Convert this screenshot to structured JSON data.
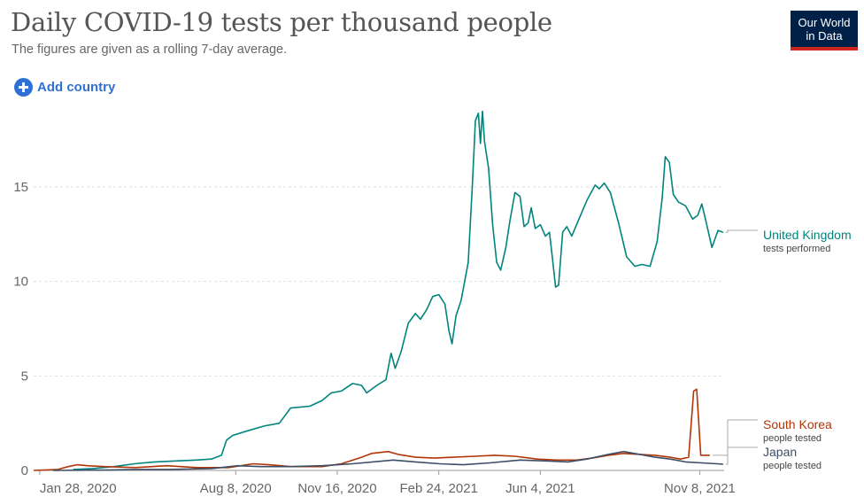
{
  "header": {
    "title": "Daily COVID-19 tests per thousand people",
    "subtitle": "The figures are given as a rolling 7-day average."
  },
  "logo": {
    "line1": "Our World",
    "line2": "in Data"
  },
  "controls": {
    "add_country_label": "Add country",
    "add_country_icon": "plus-circle-icon"
  },
  "colors": {
    "uk": "#00847e",
    "korea": "#b13507",
    "japan": "#3c4e66",
    "grid": "#dddddd"
  },
  "chart_data": {
    "type": "line",
    "title": "Daily COVID-19 tests per thousand people",
    "subtitle": "The figures are given as a rolling 7-day average.",
    "xlabel": "",
    "ylabel": "",
    "xlim": [
      "2020-01-22",
      "2021-12-02"
    ],
    "ylim": [
      0,
      19.5
    ],
    "yticks": [
      0,
      5,
      10,
      15
    ],
    "xticks": [
      "Jan 28, 2020",
      "Aug 8, 2020",
      "Nov 16, 2020",
      "Feb 24, 2021",
      "Jun 4, 2021",
      "Nov 8, 2021"
    ],
    "xtick_dates": [
      "2020-01-28",
      "2020-08-08",
      "2020-11-16",
      "2021-02-24",
      "2021-06-04",
      "2021-11-08"
    ],
    "grid": "horizontal-dashed",
    "series": [
      {
        "name": "United Kingdom",
        "sublabel": "tests performed",
        "color": "#00847e",
        "points": [
          [
            "2020-03-01",
            0.05
          ],
          [
            "2020-03-20",
            0.1
          ],
          [
            "2020-04-10",
            0.2
          ],
          [
            "2020-04-30",
            0.35
          ],
          [
            "2020-05-20",
            0.45
          ],
          [
            "2020-06-10",
            0.5
          ],
          [
            "2020-06-30",
            0.55
          ],
          [
            "2020-07-15",
            0.6
          ],
          [
            "2020-07-25",
            0.8
          ],
          [
            "2020-07-30",
            1.6
          ],
          [
            "2020-08-05",
            1.85
          ],
          [
            "2020-08-20",
            2.1
          ],
          [
            "2020-09-05",
            2.35
          ],
          [
            "2020-09-20",
            2.5
          ],
          [
            "2020-10-01",
            3.3
          ],
          [
            "2020-10-20",
            3.4
          ],
          [
            "2020-11-01",
            3.7
          ],
          [
            "2020-11-10",
            4.1
          ],
          [
            "2020-11-20",
            4.2
          ],
          [
            "2020-12-01",
            4.6
          ],
          [
            "2020-12-10",
            4.5
          ],
          [
            "2020-12-15",
            4.1
          ],
          [
            "2020-12-25",
            4.5
          ],
          [
            "2021-01-03",
            4.8
          ],
          [
            "2021-01-08",
            6.2
          ],
          [
            "2021-01-12",
            5.4
          ],
          [
            "2021-01-18",
            6.3
          ],
          [
            "2021-01-25",
            7.8
          ],
          [
            "2021-02-01",
            8.3
          ],
          [
            "2021-02-06",
            8.0
          ],
          [
            "2021-02-12",
            8.5
          ],
          [
            "2021-02-18",
            9.2
          ],
          [
            "2021-02-24",
            9.3
          ],
          [
            "2021-03-02",
            8.8
          ],
          [
            "2021-03-06",
            7.4
          ],
          [
            "2021-03-09",
            6.7
          ],
          [
            "2021-03-13",
            8.2
          ],
          [
            "2021-03-18",
            9.0
          ],
          [
            "2021-03-25",
            11.0
          ],
          [
            "2021-03-29",
            15.0
          ],
          [
            "2021-04-01",
            18.5
          ],
          [
            "2021-04-04",
            18.9
          ],
          [
            "2021-04-06",
            17.3
          ],
          [
            "2021-04-08",
            19.0
          ],
          [
            "2021-04-10",
            17.4
          ],
          [
            "2021-04-14",
            16.0
          ],
          [
            "2021-04-18",
            13.0
          ],
          [
            "2021-04-22",
            11.0
          ],
          [
            "2021-04-26",
            10.6
          ],
          [
            "2021-05-01",
            11.8
          ],
          [
            "2021-05-05",
            13.2
          ],
          [
            "2021-05-10",
            14.7
          ],
          [
            "2021-05-15",
            14.5
          ],
          [
            "2021-05-19",
            12.9
          ],
          [
            "2021-05-23",
            13.1
          ],
          [
            "2021-05-26",
            13.9
          ],
          [
            "2021-05-30",
            12.8
          ],
          [
            "2021-06-04",
            13.0
          ],
          [
            "2021-06-09",
            12.4
          ],
          [
            "2021-06-13",
            12.6
          ],
          [
            "2021-06-16",
            11.2
          ],
          [
            "2021-06-19",
            9.7
          ],
          [
            "2021-06-22",
            9.8
          ],
          [
            "2021-06-26",
            12.6
          ],
          [
            "2021-06-30",
            12.9
          ],
          [
            "2021-07-05",
            12.4
          ],
          [
            "2021-07-12",
            13.3
          ],
          [
            "2021-07-20",
            14.3
          ],
          [
            "2021-07-28",
            15.1
          ],
          [
            "2021-08-01",
            14.9
          ],
          [
            "2021-08-06",
            15.2
          ],
          [
            "2021-08-12",
            14.7
          ],
          [
            "2021-08-20",
            13.1
          ],
          [
            "2021-08-28",
            11.3
          ],
          [
            "2021-09-05",
            10.8
          ],
          [
            "2021-09-12",
            10.9
          ],
          [
            "2021-09-20",
            10.8
          ],
          [
            "2021-09-27",
            12.1
          ],
          [
            "2021-10-02",
            14.4
          ],
          [
            "2021-10-05",
            16.6
          ],
          [
            "2021-10-09",
            16.3
          ],
          [
            "2021-10-13",
            14.6
          ],
          [
            "2021-10-18",
            14.2
          ],
          [
            "2021-10-25",
            14.0
          ],
          [
            "2021-11-01",
            13.3
          ],
          [
            "2021-11-06",
            13.5
          ],
          [
            "2021-11-10",
            14.1
          ],
          [
            "2021-11-14",
            13.2
          ],
          [
            "2021-11-20",
            11.8
          ],
          [
            "2021-11-26",
            12.7
          ],
          [
            "2021-12-01",
            12.6
          ]
        ]
      },
      {
        "name": "South Korea",
        "sublabel": "people tested",
        "color": "#b13507",
        "points": [
          [
            "2020-01-22",
            0.0
          ],
          [
            "2020-02-15",
            0.05
          ],
          [
            "2020-02-25",
            0.2
          ],
          [
            "2020-03-05",
            0.3
          ],
          [
            "2020-03-15",
            0.25
          ],
          [
            "2020-04-01",
            0.2
          ],
          [
            "2020-05-01",
            0.15
          ],
          [
            "2020-06-01",
            0.25
          ],
          [
            "2020-07-01",
            0.15
          ],
          [
            "2020-08-01",
            0.15
          ],
          [
            "2020-08-25",
            0.35
          ],
          [
            "2020-09-10",
            0.3
          ],
          [
            "2020-10-01",
            0.2
          ],
          [
            "2020-11-01",
            0.2
          ],
          [
            "2020-11-20",
            0.35
          ],
          [
            "2020-12-10",
            0.7
          ],
          [
            "2020-12-20",
            0.9
          ],
          [
            "2021-01-05",
            1.0
          ],
          [
            "2021-01-15",
            0.85
          ],
          [
            "2021-02-01",
            0.7
          ],
          [
            "2021-02-20",
            0.65
          ],
          [
            "2021-03-10",
            0.7
          ],
          [
            "2021-04-01",
            0.75
          ],
          [
            "2021-04-20",
            0.8
          ],
          [
            "2021-05-10",
            0.75
          ],
          [
            "2021-06-01",
            0.6
          ],
          [
            "2021-06-20",
            0.55
          ],
          [
            "2021-07-10",
            0.55
          ],
          [
            "2021-07-25",
            0.65
          ],
          [
            "2021-08-10",
            0.8
          ],
          [
            "2021-08-25",
            0.9
          ],
          [
            "2021-09-10",
            0.85
          ],
          [
            "2021-09-25",
            0.8
          ],
          [
            "2021-10-10",
            0.7
          ],
          [
            "2021-10-20",
            0.6
          ],
          [
            "2021-10-28",
            0.7
          ],
          [
            "2021-11-02",
            4.2
          ],
          [
            "2021-11-05",
            4.3
          ],
          [
            "2021-11-09",
            0.8
          ],
          [
            "2021-11-18",
            0.8
          ]
        ]
      },
      {
        "name": "Japan",
        "sublabel": "people tested",
        "color": "#3c4e66",
        "points": [
          [
            "2020-02-10",
            0.0
          ],
          [
            "2020-04-01",
            0.02
          ],
          [
            "2020-05-01",
            0.05
          ],
          [
            "2020-06-01",
            0.05
          ],
          [
            "2020-07-15",
            0.1
          ],
          [
            "2020-08-10",
            0.25
          ],
          [
            "2020-09-01",
            0.2
          ],
          [
            "2020-10-01",
            0.2
          ],
          [
            "2020-11-01",
            0.25
          ],
          [
            "2020-12-01",
            0.35
          ],
          [
            "2021-01-10",
            0.55
          ],
          [
            "2021-02-01",
            0.45
          ],
          [
            "2021-02-25",
            0.35
          ],
          [
            "2021-03-20",
            0.3
          ],
          [
            "2021-04-15",
            0.4
          ],
          [
            "2021-05-15",
            0.55
          ],
          [
            "2021-06-10",
            0.5
          ],
          [
            "2021-07-01",
            0.45
          ],
          [
            "2021-07-20",
            0.6
          ],
          [
            "2021-08-10",
            0.85
          ],
          [
            "2021-08-25",
            1.0
          ],
          [
            "2021-09-10",
            0.85
          ],
          [
            "2021-09-25",
            0.7
          ],
          [
            "2021-10-10",
            0.6
          ],
          [
            "2021-10-25",
            0.45
          ],
          [
            "2021-11-10",
            0.4
          ],
          [
            "2021-11-25",
            0.35
          ],
          [
            "2021-12-01",
            0.33
          ]
        ]
      }
    ]
  }
}
